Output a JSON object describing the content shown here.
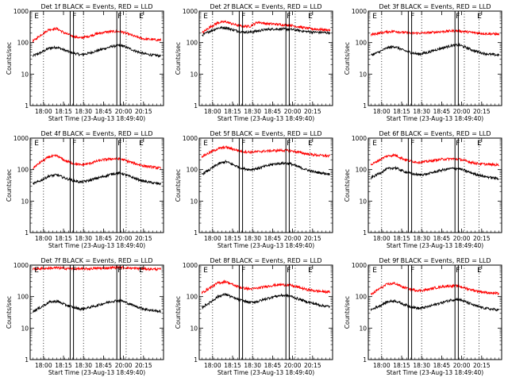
{
  "figure": {
    "time_ticks": [
      "18:00",
      "18:15",
      "18:30",
      "18:45",
      "20:00",
      "20:15"
    ],
    "y_ticks": [
      "1",
      "10",
      "100",
      "1000"
    ],
    "colors": {
      "events": "#000000",
      "lld": "#ff0000",
      "axes": "#000000"
    }
  },
  "chart_data": [
    {
      "type": "line",
      "title": "Det 1f BLACK = Events, RED = LLD",
      "xlabel": "Start Time (23-Aug-13 18:49:40)",
      "ylabel": "Counts/sec",
      "x_range_minutes_from_start": [
        -2,
        98
      ],
      "ylim": [
        1,
        1000
      ],
      "y_scale": "log",
      "x_ticks": [
        "18:00",
        "18:15",
        "18:30",
        "18:45",
        "20:00",
        "20:15"
      ],
      "markers": [
        "E",
        "F",
        "F",
        "E"
      ],
      "series": [
        {
          "name": "BLACK = Events",
          "color": "#000000",
          "x": [
            0,
            6,
            12,
            18,
            24,
            30,
            36,
            42,
            48,
            54,
            60,
            66,
            72,
            78,
            84,
            90,
            96
          ],
          "values": [
            38,
            48,
            66,
            72,
            57,
            47,
            41,
            46,
            55,
            65,
            77,
            82,
            66,
            52,
            44,
            40,
            38
          ]
        },
        {
          "name": "RED = LLD",
          "color": "#ff0000",
          "x": [
            0,
            6,
            12,
            18,
            24,
            30,
            36,
            42,
            48,
            54,
            60,
            66,
            72,
            78,
            84,
            90,
            96
          ],
          "values": [
            110,
            175,
            260,
            280,
            200,
            160,
            140,
            160,
            190,
            215,
            225,
            225,
            185,
            150,
            130,
            125,
            120
          ]
        }
      ]
    },
    {
      "type": "line",
      "title": "Det 2f BLACK = Events, RED = LLD",
      "xlabel": "Start Time (23-Aug-13 18:49:40)",
      "ylabel": "Counts/sec",
      "x_range_minutes_from_start": [
        -2,
        98
      ],
      "ylim": [
        1,
        1000
      ],
      "y_scale": "log",
      "x_ticks": [
        "18:00",
        "18:15",
        "18:30",
        "18:45",
        "20:00",
        "20:15"
      ],
      "markers": [
        "E",
        "F",
        "F",
        "E"
      ],
      "series": [
        {
          "name": "BLACK = Events",
          "color": "#000000",
          "x": [
            0,
            6,
            12,
            18,
            24,
            30,
            36,
            42,
            48,
            54,
            60,
            66,
            72,
            78,
            84,
            90,
            96
          ],
          "values": [
            170,
            230,
            290,
            300,
            250,
            220,
            215,
            235,
            260,
            270,
            270,
            265,
            245,
            225,
            215,
            210,
            205
          ]
        },
        {
          "name": "RED = LLD",
          "color": "#ff0000",
          "x": [
            0,
            6,
            12,
            18,
            24,
            30,
            36,
            42,
            48,
            54,
            60,
            66,
            72,
            78,
            84,
            90,
            96
          ],
          "values": [
            200,
            310,
            430,
            460,
            380,
            330,
            330,
            450,
            400,
            390,
            370,
            360,
            320,
            290,
            270,
            260,
            250
          ]
        }
      ]
    },
    {
      "type": "line",
      "title": "Det 3f BLACK = Events, RED = LLD",
      "xlabel": "Start Time (23-Aug-13 18:49:40)",
      "ylabel": "Counts/sec",
      "x_range_minutes_from_start": [
        -2,
        98
      ],
      "ylim": [
        1,
        1000
      ],
      "y_scale": "log",
      "x_ticks": [
        "18:00",
        "18:15",
        "18:30",
        "18:45",
        "20:00",
        "20:15"
      ],
      "markers": [
        "E",
        "F",
        "F",
        "E"
      ],
      "series": [
        {
          "name": "BLACK = Events",
          "color": "#000000",
          "x": [
            0,
            6,
            12,
            18,
            24,
            30,
            36,
            42,
            48,
            54,
            60,
            66,
            72,
            78,
            84,
            90,
            96
          ],
          "values": [
            40,
            50,
            68,
            75,
            58,
            48,
            43,
            48,
            58,
            68,
            80,
            85,
            68,
            54,
            46,
            42,
            40
          ]
        },
        {
          "name": "RED = LLD",
          "color": "#ff0000",
          "x": [
            0,
            6,
            12,
            18,
            24,
            30,
            36,
            42,
            48,
            54,
            60,
            66,
            72,
            78,
            84,
            90,
            96
          ],
          "values": [
            180,
            200,
            220,
            230,
            210,
            200,
            200,
            205,
            215,
            225,
            235,
            235,
            220,
            205,
            195,
            190,
            185
          ]
        }
      ]
    },
    {
      "type": "line",
      "title": "Det 4f BLACK = Events, RED = LLD",
      "xlabel": "Start Time (23-Aug-13 18:49:40)",
      "ylabel": "Counts/sec",
      "x_range_minutes_from_start": [
        -2,
        98
      ],
      "ylim": [
        1,
        1000
      ],
      "y_scale": "log",
      "x_ticks": [
        "18:00",
        "18:15",
        "18:30",
        "18:45",
        "20:00",
        "20:15"
      ],
      "markers": [
        "E",
        "F",
        "F",
        "E"
      ],
      "series": [
        {
          "name": "BLACK = Events",
          "color": "#000000",
          "x": [
            0,
            6,
            12,
            18,
            24,
            30,
            36,
            42,
            48,
            54,
            60,
            66,
            72,
            78,
            84,
            90,
            96
          ],
          "values": [
            35,
            45,
            62,
            68,
            54,
            45,
            40,
            45,
            53,
            62,
            74,
            78,
            62,
            50,
            42,
            38,
            35
          ]
        },
        {
          "name": "RED = LLD",
          "color": "#ff0000",
          "x": [
            0,
            6,
            12,
            18,
            24,
            30,
            36,
            42,
            48,
            54,
            60,
            66,
            72,
            78,
            84,
            90,
            96
          ],
          "values": [
            110,
            175,
            255,
            275,
            195,
            160,
            140,
            155,
            185,
            210,
            220,
            220,
            180,
            150,
            130,
            120,
            110
          ]
        }
      ]
    },
    {
      "type": "line",
      "title": "Det 5f BLACK = Events, RED = LLD",
      "xlabel": "Start Time (23-Aug-13 18:49:40)",
      "ylabel": "Counts/sec",
      "x_range_minutes_from_start": [
        -2,
        98
      ],
      "ylim": [
        1,
        1000
      ],
      "y_scale": "log",
      "x_ticks": [
        "18:00",
        "18:15",
        "18:30",
        "18:45",
        "20:00",
        "20:15"
      ],
      "markers": [
        "E",
        "F",
        "F",
        "E"
      ],
      "series": [
        {
          "name": "BLACK = Events",
          "color": "#000000",
          "x": [
            0,
            6,
            12,
            18,
            24,
            30,
            36,
            42,
            48,
            54,
            60,
            66,
            72,
            78,
            84,
            90,
            96
          ],
          "values": [
            72,
            100,
            150,
            180,
            140,
            110,
            100,
            110,
            130,
            150,
            160,
            155,
            125,
            100,
            85,
            78,
            72
          ]
        },
        {
          "name": "RED = LLD",
          "color": "#ff0000",
          "x": [
            0,
            6,
            12,
            18,
            24,
            30,
            36,
            42,
            48,
            54,
            60,
            66,
            72,
            78,
            84,
            90,
            96
          ],
          "values": [
            260,
            350,
            460,
            520,
            440,
            380,
            360,
            370,
            390,
            400,
            410,
            400,
            360,
            320,
            295,
            280,
            270
          ]
        }
      ]
    },
    {
      "type": "line",
      "title": "Det 6f BLACK = Events, RED = LLD",
      "xlabel": "Start Time (23-Aug-13 18:49:40)",
      "ylabel": "Counts/sec",
      "x_range_minutes_from_start": [
        -2,
        98
      ],
      "ylim": [
        1,
        1000
      ],
      "y_scale": "log",
      "x_ticks": [
        "18:00",
        "18:15",
        "18:30",
        "18:45",
        "20:00",
        "20:15"
      ],
      "markers": [
        "E",
        "F",
        "F",
        "E"
      ],
      "series": [
        {
          "name": "BLACK = Events",
          "color": "#000000",
          "x": [
            0,
            6,
            12,
            18,
            24,
            30,
            36,
            42,
            48,
            54,
            60,
            66,
            72,
            78,
            84,
            90,
            96
          ],
          "values": [
            55,
            75,
            105,
            115,
            90,
            75,
            68,
            72,
            85,
            98,
            108,
            108,
            88,
            72,
            62,
            56,
            52
          ]
        },
        {
          "name": "RED = LLD",
          "color": "#ff0000",
          "x": [
            0,
            6,
            12,
            18,
            24,
            30,
            36,
            42,
            48,
            54,
            60,
            66,
            72,
            78,
            84,
            90,
            96
          ],
          "values": [
            140,
            200,
            270,
            290,
            220,
            185,
            170,
            180,
            200,
            215,
            220,
            215,
            185,
            160,
            150,
            145,
            140
          ]
        }
      ]
    },
    {
      "type": "line",
      "title": "Det 7f BLACK = Events, RED = LLD",
      "xlabel": "Start Time (23-Aug-13 18:49:40)",
      "ylabel": "Counts/sec",
      "x_range_minutes_from_start": [
        -2,
        98
      ],
      "ylim": [
        1,
        1000
      ],
      "y_scale": "log",
      "x_ticks": [
        "18:00",
        "18:15",
        "18:30",
        "18:45",
        "20:00",
        "20:15"
      ],
      "markers": [
        "E",
        "F",
        "F",
        "E"
      ],
      "series": [
        {
          "name": "BLACK = Events",
          "color": "#000000",
          "x": [
            0,
            6,
            12,
            18,
            24,
            30,
            36,
            42,
            48,
            54,
            60,
            66,
            72,
            78,
            84,
            90,
            96
          ],
          "values": [
            34,
            46,
            66,
            72,
            56,
            46,
            40,
            45,
            52,
            62,
            72,
            75,
            60,
            48,
            40,
            36,
            34
          ]
        },
        {
          "name": "RED = LLD",
          "color": "#ff0000",
          "x": [
            0,
            6,
            12,
            18,
            24,
            30,
            36,
            42,
            48,
            54,
            60,
            66,
            72,
            78,
            84,
            90,
            96
          ],
          "values": [
            750,
            780,
            800,
            820,
            790,
            770,
            760,
            770,
            790,
            810,
            830,
            840,
            810,
            780,
            760,
            750,
            740
          ]
        }
      ]
    },
    {
      "type": "line",
      "title": "Det 8f BLACK = Events, RED = LLD",
      "xlabel": "Start Time (23-Aug-13 18:49:40)",
      "ylabel": "Counts/sec",
      "x_range_minutes_from_start": [
        -2,
        98
      ],
      "ylim": [
        1,
        1000
      ],
      "y_scale": "log",
      "x_ticks": [
        "18:00",
        "18:15",
        "18:30",
        "18:45",
        "20:00",
        "20:15"
      ],
      "markers": [
        "E",
        "F",
        "F",
        "E"
      ],
      "series": [
        {
          "name": "BLACK = Events",
          "color": "#000000",
          "x": [
            0,
            6,
            12,
            18,
            24,
            30,
            36,
            42,
            48,
            54,
            60,
            66,
            72,
            78,
            84,
            90,
            96
          ],
          "values": [
            45,
            65,
            100,
            120,
            90,
            75,
            65,
            70,
            85,
            100,
            110,
            105,
            85,
            70,
            60,
            52,
            48
          ]
        },
        {
          "name": "RED = LLD",
          "color": "#ff0000",
          "x": [
            0,
            6,
            12,
            18,
            24,
            30,
            36,
            42,
            48,
            54,
            60,
            66,
            72,
            78,
            84,
            90,
            96
          ],
          "values": [
            130,
            190,
            270,
            300,
            230,
            190,
            175,
            185,
            210,
            230,
            240,
            230,
            200,
            170,
            155,
            145,
            140
          ]
        }
      ]
    },
    {
      "type": "line",
      "title": "Det 9f BLACK = Events, RED = LLD",
      "xlabel": "Start Time (23-Aug-13 18:49:40)",
      "ylabel": "Counts/sec",
      "x_range_minutes_from_start": [
        -2,
        98
      ],
      "ylim": [
        1,
        1000
      ],
      "y_scale": "log",
      "x_ticks": [
        "18:00",
        "18:15",
        "18:30",
        "18:45",
        "20:00",
        "20:15"
      ],
      "markers": [
        "E",
        "F",
        "F",
        "E"
      ],
      "series": [
        {
          "name": "BLACK = Events",
          "color": "#000000",
          "x": [
            0,
            6,
            12,
            18,
            24,
            30,
            36,
            42,
            48,
            54,
            60,
            66,
            72,
            78,
            84,
            90,
            96
          ],
          "values": [
            38,
            50,
            68,
            74,
            58,
            48,
            42,
            47,
            56,
            66,
            78,
            82,
            66,
            52,
            44,
            40,
            38
          ]
        },
        {
          "name": "RED = LLD",
          "color": "#ff0000",
          "x": [
            0,
            6,
            12,
            18,
            24,
            30,
            36,
            42,
            48,
            54,
            60,
            66,
            72,
            78,
            84,
            90,
            96
          ],
          "values": [
            115,
            175,
            245,
            265,
            200,
            170,
            155,
            165,
            190,
            210,
            220,
            215,
            180,
            155,
            140,
            130,
            125
          ]
        }
      ]
    }
  ]
}
